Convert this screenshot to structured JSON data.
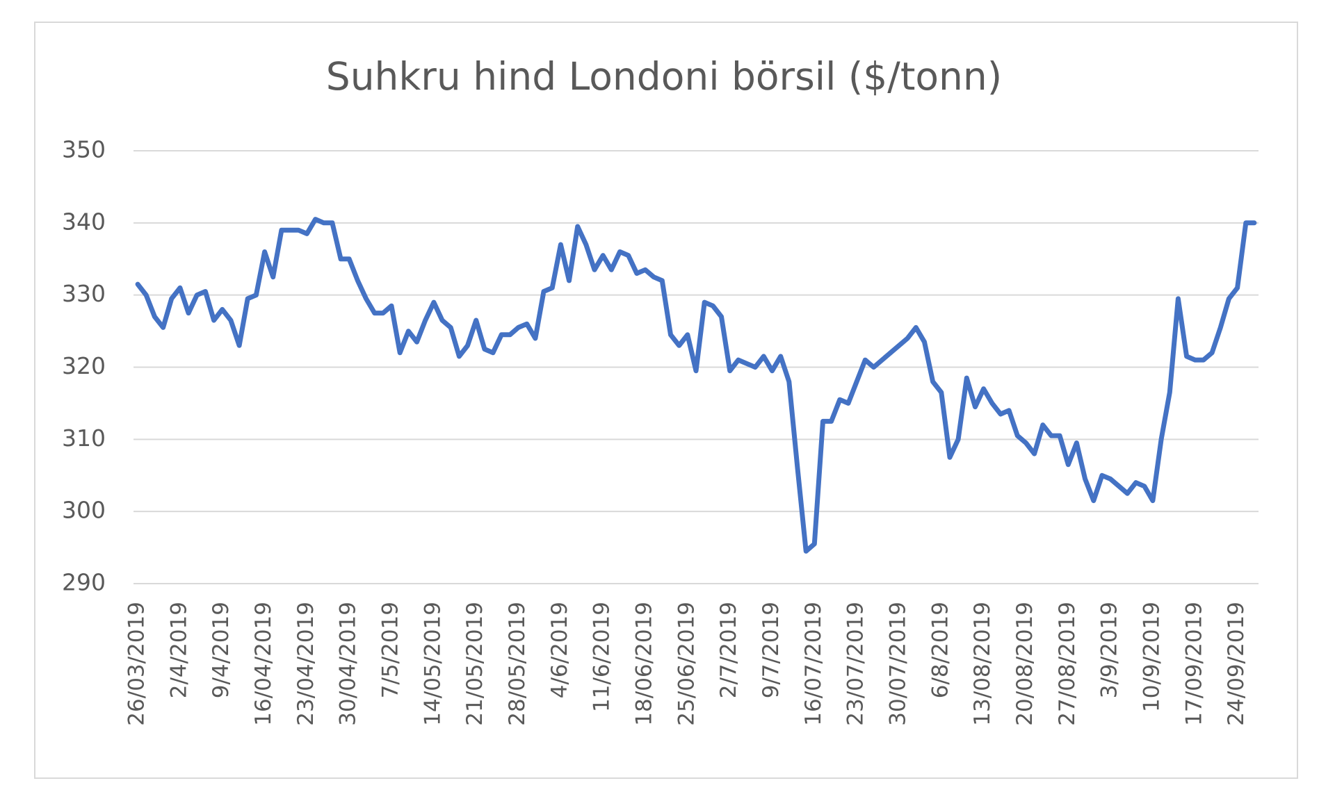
{
  "chart_data": {
    "type": "line",
    "title": "Suhkru hind Londoni börsil ($/tonn)",
    "categories": [
      "26/03/2019",
      null,
      null,
      null,
      null,
      "2/4/2019",
      null,
      null,
      null,
      null,
      "9/4/2019",
      null,
      null,
      null,
      null,
      "16/04/2019",
      null,
      null,
      null,
      null,
      "23/04/2019",
      null,
      null,
      null,
      null,
      "30/04/2019",
      null,
      null,
      null,
      null,
      "7/5/2019",
      null,
      null,
      null,
      null,
      "14/05/2019",
      null,
      null,
      null,
      null,
      "21/05/2019",
      null,
      null,
      null,
      null,
      "28/05/2019",
      null,
      null,
      null,
      null,
      "4/6/2019",
      null,
      null,
      null,
      null,
      "11/6/2019",
      null,
      null,
      null,
      null,
      "18/06/2019",
      null,
      null,
      null,
      null,
      "25/06/2019",
      null,
      null,
      null,
      null,
      "2/7/2019",
      null,
      null,
      null,
      null,
      "9/7/2019",
      null,
      null,
      null,
      null,
      "16/07/2019",
      null,
      null,
      null,
      null,
      "23/07/2019",
      null,
      null,
      null,
      null,
      "30/07/2019",
      null,
      null,
      null,
      null,
      "6/8/2019",
      null,
      null,
      null,
      null,
      "13/08/2019",
      null,
      null,
      null,
      null,
      "20/08/2019",
      null,
      null,
      null,
      null,
      "27/08/2019",
      null,
      null,
      null,
      null,
      "3/9/2019",
      null,
      null,
      null,
      null,
      "10/9/2019",
      null,
      null,
      null,
      null,
      "17/09/2019",
      null,
      null,
      null,
      null,
      "24/09/2019",
      null,
      null
    ],
    "values": [
      331.5,
      330,
      327,
      325.5,
      329.5,
      331,
      327.5,
      330,
      330.5,
      326.5,
      328,
      326.5,
      323,
      329.5,
      330,
      336,
      332.5,
      339,
      339,
      339,
      338.5,
      340.5,
      340,
      340,
      335,
      335,
      332,
      329.5,
      327.5,
      327.5,
      328.5,
      322,
      325,
      323.5,
      326.5,
      329,
      326.5,
      325.5,
      321.5,
      323,
      326.5,
      322.5,
      322,
      324.5,
      324.5,
      325.5,
      326,
      324,
      330.5,
      331,
      337,
      332,
      339.5,
      337,
      333.5,
      335.5,
      333.5,
      336,
      335.5,
      333,
      333.5,
      332.5,
      332,
      324.5,
      323,
      324.5,
      319.5,
      329,
      328.5,
      327,
      319.5,
      321,
      320.5,
      320,
      321.5,
      319.5,
      321.5,
      318,
      306,
      294.5,
      295.5,
      312.5,
      312.5,
      315.5,
      315,
      318,
      321,
      320,
      321,
      322,
      323,
      324,
      325.5,
      323.5,
      318,
      316.5,
      307.5,
      310,
      318.5,
      314.5,
      317,
      315,
      313.5,
      314,
      310.5,
      309.5,
      308,
      312,
      310.5,
      310.5,
      306.5,
      309.5,
      304.5,
      301.5,
      305,
      304.5,
      303.5,
      302.5,
      304,
      303.5,
      301.5,
      310,
      316.5,
      329.5,
      321.5,
      321,
      321,
      322,
      325.5,
      329.5,
      331,
      340,
      340
    ],
    "color": "#4472c4",
    "ylim": [
      290,
      350
    ],
    "yticks": [
      290,
      300,
      310,
      320,
      330,
      340,
      350
    ],
    "grid": true
  }
}
